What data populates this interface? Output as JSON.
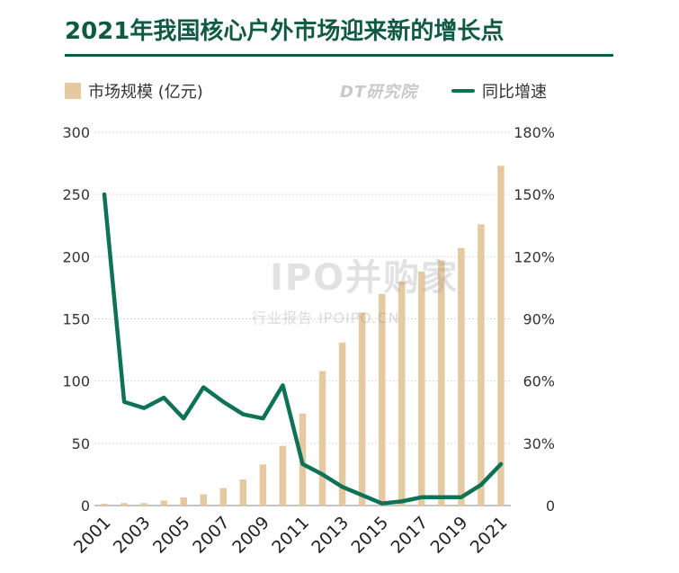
{
  "title": "2021年我国核心户外市场迎来新的增长点",
  "legend": {
    "bar_label": "市场规模 (亿元)",
    "line_label": "同比增速"
  },
  "source_logo": "DT研究院",
  "watermark": {
    "main": "IPO并购家",
    "sub": "行业报告 IPOIPO.CN"
  },
  "colors": {
    "bar": "#e5c9a1",
    "line": "#0e7356",
    "title": "#0e5a43"
  },
  "chart_data": {
    "type": "bar",
    "years": [
      2001,
      2002,
      2003,
      2004,
      2005,
      2006,
      2007,
      2008,
      2009,
      2010,
      2011,
      2012,
      2013,
      2014,
      2015,
      2016,
      2017,
      2018,
      2019,
      2020,
      2021
    ],
    "x_tick_labels": [
      "2001",
      "2003",
      "2005",
      "2007",
      "2009",
      "2011",
      "2013",
      "2015",
      "2017",
      "2019",
      "2021"
    ],
    "series": [
      {
        "name": "市场规模 (亿元)",
        "type": "bar",
        "axis": "left",
        "values": [
          1.5,
          2,
          2,
          4,
          6.5,
          9,
          14,
          21,
          33,
          48,
          74,
          108,
          131,
          155,
          170,
          180,
          188,
          197,
          207,
          226,
          273
        ]
      },
      {
        "name": "同比增速",
        "type": "line",
        "axis": "right",
        "values": [
          150,
          50,
          47,
          52,
          42,
          57,
          50,
          44,
          42,
          58,
          20,
          15,
          9,
          5,
          1,
          2,
          4,
          4,
          4,
          10,
          20
        ]
      }
    ],
    "y_left": {
      "min": 0,
      "max": 300,
      "ticks": [
        "0",
        "50",
        "100",
        "150",
        "200",
        "250",
        "300"
      ]
    },
    "y_right": {
      "min": 0,
      "max": 180,
      "ticks": [
        "0",
        "30%",
        "60%",
        "90%",
        "120%",
        "150%",
        "180%"
      ]
    },
    "grid": true
  }
}
